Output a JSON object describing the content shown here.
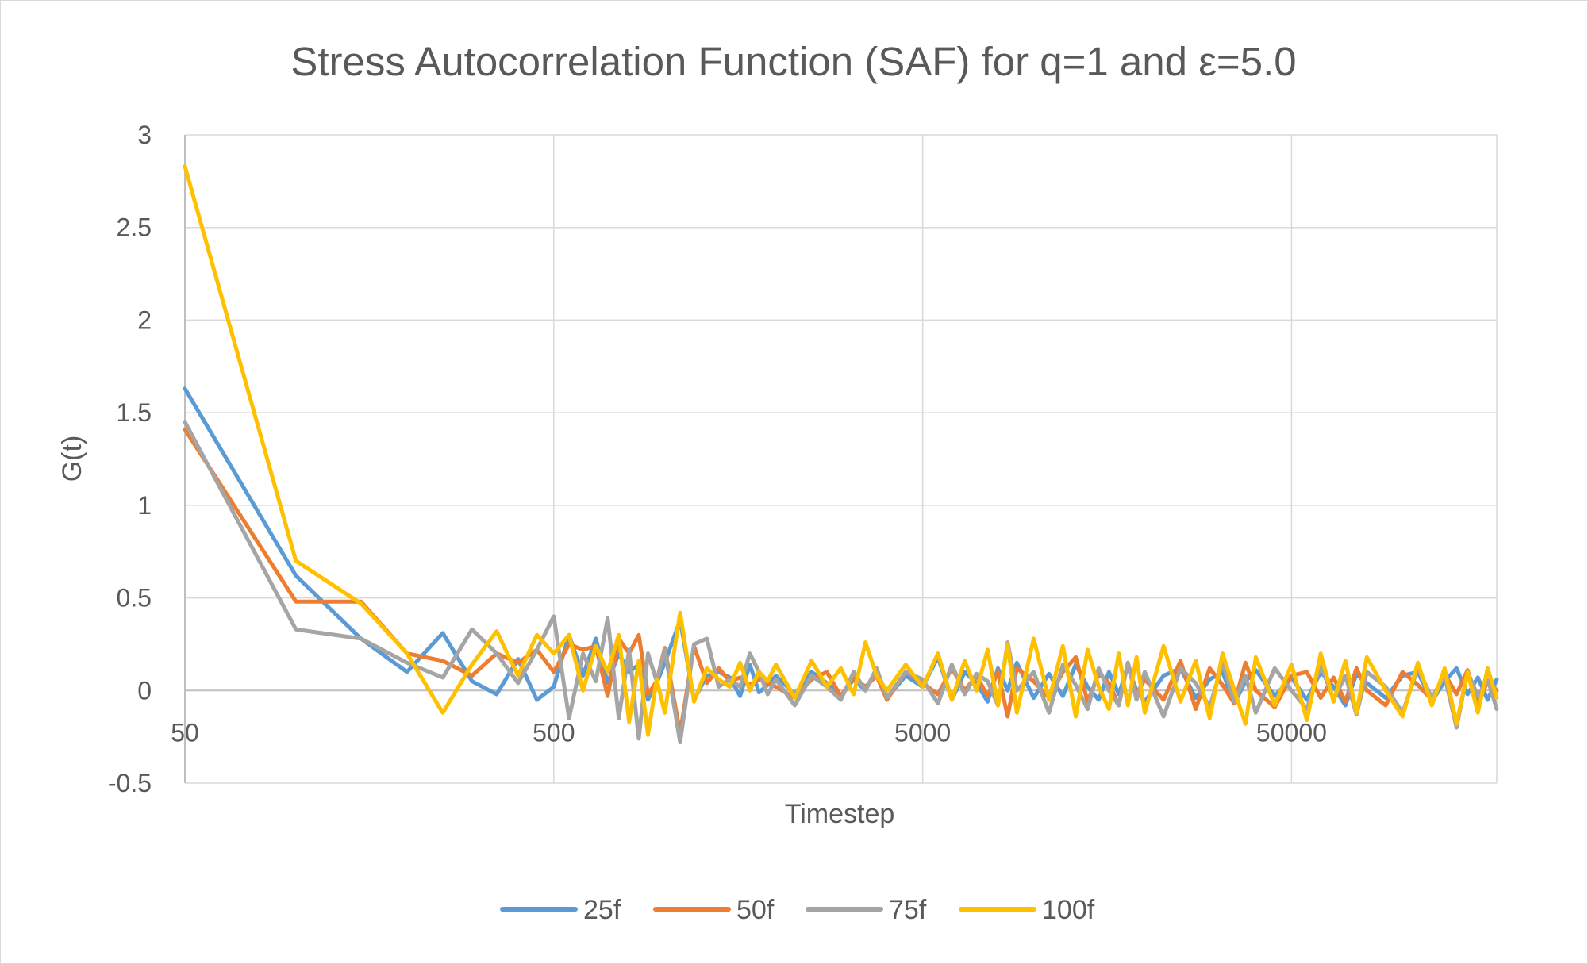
{
  "chart_data": {
    "type": "line",
    "title": "Stress Autocorrelation Function (SAF) for q=1 and ε=5.0",
    "xlabel": "Timestep",
    "ylabel": "G(t)",
    "x_scale": "log",
    "xlim": [
      50,
      180000
    ],
    "ylim": [
      -0.5,
      3
    ],
    "x_ticks": [
      "50",
      "500",
      "5000",
      "50000"
    ],
    "y_ticks": [
      "3",
      "2.5",
      "2",
      "1.5",
      "1",
      "0.5",
      "0",
      "-0.5"
    ],
    "grid": true,
    "legend_position": "bottom",
    "x": [
      50,
      100,
      150,
      200,
      250,
      300,
      350,
      400,
      450,
      500,
      550,
      600,
      650,
      700,
      750,
      800,
      850,
      900,
      950,
      1000,
      1100,
      1200,
      1300,
      1400,
      1500,
      1600,
      1700,
      1800,
      1900,
      2000,
      2250,
      2500,
      2750,
      3000,
      3250,
      3500,
      3750,
      4000,
      4500,
      5000,
      5500,
      6000,
      6500,
      7000,
      7500,
      8000,
      8500,
      9000,
      10000,
      11000,
      12000,
      13000,
      14000,
      15000,
      16000,
      17000,
      18000,
      19000,
      20000,
      22500,
      25000,
      27500,
      30000,
      32500,
      35000,
      37500,
      40000,
      45000,
      50000,
      55000,
      60000,
      65000,
      70000,
      75000,
      80000,
      90000,
      100000,
      110000,
      120000,
      130000,
      140000,
      150000,
      160000,
      170000,
      180000
    ],
    "series": [
      {
        "name": "25f",
        "color": "#5B9BD5",
        "values": [
          1.63,
          0.62,
          0.28,
          0.1,
          0.31,
          0.05,
          -0.02,
          0.17,
          -0.05,
          0.02,
          0.3,
          0.08,
          0.28,
          0.04,
          0.2,
          0.1,
          0.14,
          -0.05,
          0.04,
          0.15,
          0.38,
          -0.05,
          0.08,
          0.1,
          0.07,
          -0.03,
          0.14,
          -0.01,
          0.03,
          0.08,
          -0.02,
          0.1,
          0.04,
          -0.03,
          0.06,
          0.0,
          0.12,
          -0.04,
          0.08,
          0.02,
          0.18,
          -0.05,
          0.1,
          0.04,
          -0.06,
          0.12,
          0.0,
          0.15,
          -0.04,
          0.09,
          -0.03,
          0.14,
          0.02,
          -0.05,
          0.1,
          -0.02,
          0.13,
          0.0,
          -0.06,
          0.08,
          0.12,
          -0.04,
          0.06,
          0.1,
          -0.07,
          0.05,
          0.11,
          -0.03,
          0.07,
          -0.05,
          0.1,
          0.02,
          -0.08,
          0.09,
          0.04,
          -0.04,
          0.08,
          0.1,
          -0.06,
          0.05,
          0.12,
          -0.02,
          0.07,
          -0.05,
          0.06
        ]
      },
      {
        "name": "50f",
        "color": "#ED7D31",
        "values": [
          1.41,
          0.48,
          0.48,
          0.2,
          0.16,
          0.08,
          0.2,
          0.15,
          0.22,
          0.1,
          0.25,
          0.22,
          0.24,
          -0.03,
          0.28,
          0.2,
          0.3,
          -0.02,
          0.05,
          0.23,
          -0.23,
          0.24,
          0.04,
          0.12,
          0.05,
          0.07,
          0.03,
          0.06,
          0.04,
          0.02,
          -0.04,
          0.06,
          0.1,
          -0.03,
          0.07,
          0.02,
          0.08,
          -0.05,
          0.1,
          0.04,
          -0.02,
          0.12,
          0.0,
          0.08,
          -0.03,
          0.1,
          -0.14,
          0.12,
          0.05,
          -0.04,
          0.1,
          0.18,
          -0.06,
          0.09,
          0.04,
          -0.08,
          0.15,
          -0.02,
          0.06,
          -0.05,
          0.16,
          -0.1,
          0.12,
          0.03,
          -0.07,
          0.15,
          0.0,
          -0.09,
          0.08,
          0.1,
          -0.04,
          0.07,
          -0.06,
          0.12,
          0.0,
          -0.08,
          0.1,
          0.03,
          -0.05,
          0.09,
          -0.02,
          0.11,
          -0.07,
          0.05,
          0.0
        ]
      },
      {
        "name": "75f",
        "color": "#A5A5A5",
        "values": [
          1.45,
          0.33,
          0.28,
          0.15,
          0.07,
          0.33,
          0.2,
          0.04,
          0.22,
          0.4,
          -0.15,
          0.2,
          0.05,
          0.39,
          -0.15,
          0.22,
          -0.26,
          0.2,
          0.05,
          0.22,
          -0.28,
          0.25,
          0.28,
          0.02,
          0.06,
          0.02,
          0.2,
          0.1,
          -0.02,
          0.06,
          -0.08,
          0.08,
          0.02,
          -0.05,
          0.1,
          0.0,
          0.12,
          -0.04,
          0.1,
          0.06,
          -0.07,
          0.14,
          -0.02,
          0.09,
          0.05,
          -0.08,
          0.26,
          0.0,
          0.1,
          -0.12,
          0.14,
          0.03,
          -0.1,
          0.12,
          0.0,
          -0.08,
          0.15,
          -0.05,
          0.1,
          -0.14,
          0.12,
          0.04,
          -0.09,
          0.15,
          -0.06,
          0.08,
          -0.12,
          0.12,
          0.0,
          -0.1,
          0.14,
          -0.05,
          0.08,
          -0.13,
          0.1,
          0.02,
          -0.12,
          0.12,
          -0.04,
          0.08,
          -0.2,
          0.1,
          -0.03,
          0.06,
          -0.1
        ]
      },
      {
        "name": "100f",
        "color": "#FFC000",
        "values": [
          2.83,
          0.7,
          0.47,
          0.2,
          -0.12,
          0.14,
          0.32,
          0.08,
          0.3,
          0.2,
          0.3,
          0.0,
          0.24,
          0.1,
          0.3,
          -0.17,
          0.16,
          -0.24,
          0.06,
          -0.12,
          0.42,
          -0.06,
          0.12,
          0.06,
          0.02,
          0.15,
          0.0,
          0.1,
          0.05,
          0.14,
          -0.04,
          0.16,
          0.02,
          0.12,
          -0.02,
          0.26,
          0.08,
          0.0,
          0.14,
          0.02,
          0.2,
          -0.05,
          0.16,
          0.0,
          0.22,
          -0.08,
          0.25,
          -0.12,
          0.28,
          -0.05,
          0.24,
          -0.14,
          0.22,
          0.02,
          -0.1,
          0.2,
          -0.08,
          0.18,
          -0.12,
          0.24,
          -0.06,
          0.16,
          -0.15,
          0.2,
          0.0,
          -0.18,
          0.18,
          -0.08,
          0.14,
          -0.16,
          0.2,
          -0.06,
          0.16,
          -0.12,
          0.18,
          0.0,
          -0.14,
          0.15,
          -0.08,
          0.12,
          -0.18,
          0.1,
          -0.12,
          0.12,
          -0.04
        ]
      }
    ]
  }
}
